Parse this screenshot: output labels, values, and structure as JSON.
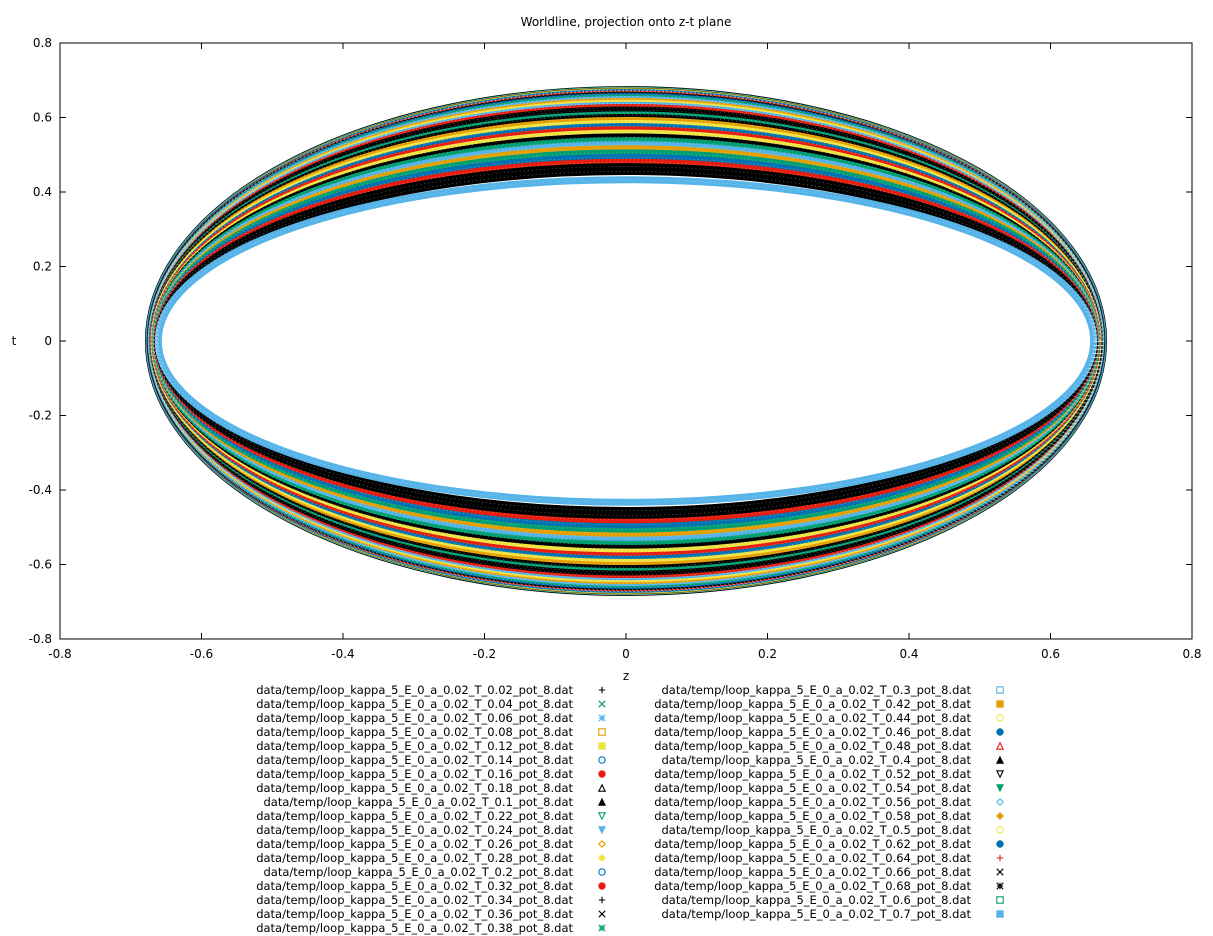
{
  "chart_data": {
    "type": "scatter",
    "title": "Worldline, projection onto z-t plane",
    "xlabel": "z",
    "ylabel": "t",
    "xlim": [
      -0.8,
      0.8
    ],
    "ylim": [
      -0.8,
      0.8
    ],
    "xticks": [
      "-0.8",
      "-0.6",
      "-0.4",
      "-0.2",
      "0",
      "0.2",
      "0.4",
      "0.6",
      "0.8"
    ],
    "yticks": [
      "0.8",
      "0.6",
      "0.4",
      "0.2",
      "0",
      "-0.2",
      "-0.4",
      "-0.6",
      "-0.8"
    ],
    "grid": false,
    "legend_position": "below",
    "series": [
      {
        "name": "data/temp/loop_kappa_5_E_0_a_0.02_T_0.02_pot_8.dat",
        "color": "#000000",
        "marker": "plus",
        "rz": 0.675,
        "rt": 0.675
      },
      {
        "name": "data/temp/loop_kappa_5_E_0_a_0.02_T_0.04_pot_8.dat",
        "color": "#009e73",
        "marker": "cross",
        "rz": 0.674,
        "rt": 0.673
      },
      {
        "name": "data/temp/loop_kappa_5_E_0_a_0.02_T_0.06_pot_8.dat",
        "color": "#56b4e9",
        "marker": "star",
        "rz": 0.674,
        "rt": 0.672
      },
      {
        "name": "data/temp/loop_kappa_5_E_0_a_0.02_T_0.08_pot_8.dat",
        "color": "#e69f00",
        "marker": "square-open",
        "rz": 0.673,
        "rt": 0.671
      },
      {
        "name": "data/temp/loop_kappa_5_E_0_a_0.02_T_0.12_pot_8.dat",
        "color": "#f0e442",
        "marker": "square-filled",
        "rz": 0.673,
        "rt": 0.669
      },
      {
        "name": "data/temp/loop_kappa_5_E_0_a_0.02_T_0.14_pot_8.dat",
        "color": "#0072b2",
        "marker": "circle-open",
        "rz": 0.673,
        "rt": 0.667
      },
      {
        "name": "data/temp/loop_kappa_5_E_0_a_0.02_T_0.16_pot_8.dat",
        "color": "#e51e10",
        "marker": "circle-filled",
        "rz": 0.672,
        "rt": 0.663
      },
      {
        "name": "data/temp/loop_kappa_5_E_0_a_0.02_T_0.18_pot_8.dat",
        "color": "#000000",
        "marker": "triangle-open",
        "rz": 0.672,
        "rt": 0.66
      },
      {
        "name": "data/temp/loop_kappa_5_E_0_a_0.02_T_0.1_pot_8.dat",
        "color": "#000000",
        "marker": "triangle-filled",
        "rz": 0.673,
        "rt": 0.67
      },
      {
        "name": "data/temp/loop_kappa_5_E_0_a_0.02_T_0.22_pot_8.dat",
        "color": "#009e73",
        "marker": "invtriangle-open",
        "rz": 0.671,
        "rt": 0.652
      },
      {
        "name": "data/temp/loop_kappa_5_E_0_a_0.02_T_0.24_pot_8.dat",
        "color": "#56b4e9",
        "marker": "invtriangle-filled",
        "rz": 0.671,
        "rt": 0.648
      },
      {
        "name": "data/temp/loop_kappa_5_E_0_a_0.02_T_0.26_pot_8.dat",
        "color": "#e69f00",
        "marker": "diamond-open",
        "rz": 0.67,
        "rt": 0.643
      },
      {
        "name": "data/temp/loop_kappa_5_E_0_a_0.02_T_0.28_pot_8.dat",
        "color": "#f0e442",
        "marker": "diamond-filled",
        "rz": 0.67,
        "rt": 0.638
      },
      {
        "name": "data/temp/loop_kappa_5_E_0_a_0.02_T_0.2_pot_8.dat",
        "color": "#0072b2",
        "marker": "circle-open",
        "rz": 0.671,
        "rt": 0.656
      },
      {
        "name": "data/temp/loop_kappa_5_E_0_a_0.02_T_0.32_pot_8.dat",
        "color": "#e51e10",
        "marker": "circle-filled",
        "rz": 0.669,
        "rt": 0.627
      },
      {
        "name": "data/temp/loop_kappa_5_E_0_a_0.02_T_0.34_pot_8.dat",
        "color": "#000000",
        "marker": "plus",
        "rz": 0.669,
        "rt": 0.62
      },
      {
        "name": "data/temp/loop_kappa_5_E_0_a_0.02_T_0.36_pot_8.dat",
        "color": "#000000",
        "marker": "cross",
        "rz": 0.668,
        "rt": 0.614
      },
      {
        "name": "data/temp/loop_kappa_5_E_0_a_0.02_T_0.38_pot_8.dat",
        "color": "#009e73",
        "marker": "star",
        "rz": 0.668,
        "rt": 0.607
      },
      {
        "name": "data/temp/loop_kappa_5_E_0_a_0.02_T_0.3_pot_8.dat",
        "color": "#56b4e9",
        "marker": "square-open",
        "rz": 0.67,
        "rt": 0.633
      },
      {
        "name": "data/temp/loop_kappa_5_E_0_a_0.02_T_0.42_pot_8.dat",
        "color": "#e69f00",
        "marker": "square-filled",
        "rz": 0.667,
        "rt": 0.592
      },
      {
        "name": "data/temp/loop_kappa_5_E_0_a_0.02_T_0.44_pot_8.dat",
        "color": "#f0e442",
        "marker": "circle-open",
        "rz": 0.667,
        "rt": 0.584
      },
      {
        "name": "data/temp/loop_kappa_5_E_0_a_0.02_T_0.46_pot_8.dat",
        "color": "#0072b2",
        "marker": "circle-filled",
        "rz": 0.666,
        "rt": 0.576
      },
      {
        "name": "data/temp/loop_kappa_5_E_0_a_0.02_T_0.48_pot_8.dat",
        "color": "#e51e10",
        "marker": "triangle-open",
        "rz": 0.666,
        "rt": 0.567
      },
      {
        "name": "data/temp/loop_kappa_5_E_0_a_0.02_T_0.4_pot_8.dat",
        "color": "#000000",
        "marker": "triangle-filled",
        "rz": 0.668,
        "rt": 0.6
      },
      {
        "name": "data/temp/loop_kappa_5_E_0_a_0.02_T_0.52_pot_8.dat",
        "color": "#000000",
        "marker": "invtriangle-open",
        "rz": 0.665,
        "rt": 0.548
      },
      {
        "name": "data/temp/loop_kappa_5_E_0_a_0.02_T_0.54_pot_8.dat",
        "color": "#009e73",
        "marker": "invtriangle-filled",
        "rz": 0.665,
        "rt": 0.538
      },
      {
        "name": "data/temp/loop_kappa_5_E_0_a_0.02_T_0.56_pot_8.dat",
        "color": "#56b4e9",
        "marker": "diamond-open",
        "rz": 0.664,
        "rt": 0.527
      },
      {
        "name": "data/temp/loop_kappa_5_E_0_a_0.02_T_0.58_pot_8.dat",
        "color": "#e69f00",
        "marker": "diamond-filled",
        "rz": 0.664,
        "rt": 0.516
      },
      {
        "name": "data/temp/loop_kappa_5_E_0_a_0.02_T_0.5_pot_8.dat",
        "color": "#f0e442",
        "marker": "circle-open",
        "rz": 0.665,
        "rt": 0.558
      },
      {
        "name": "data/temp/loop_kappa_5_E_0_a_0.02_T_0.62_pot_8.dat",
        "color": "#0072b2",
        "marker": "circle-filled",
        "rz": 0.663,
        "rt": 0.493
      },
      {
        "name": "data/temp/loop_kappa_5_E_0_a_0.02_T_0.64_pot_8.dat",
        "color": "#e51e10",
        "marker": "plus",
        "rz": 0.663,
        "rt": 0.48
      },
      {
        "name": "data/temp/loop_kappa_5_E_0_a_0.02_T_0.66_pot_8.dat",
        "color": "#000000",
        "marker": "cross",
        "rz": 0.662,
        "rt": 0.468
      },
      {
        "name": "data/temp/loop_kappa_5_E_0_a_0.02_T_0.68_pot_8.dat",
        "color": "#000000",
        "marker": "star",
        "rz": 0.662,
        "rt": 0.455
      },
      {
        "name": "data/temp/loop_kappa_5_E_0_a_0.02_T_0.6_pot_8.dat",
        "color": "#009e73",
        "marker": "square-open",
        "rz": 0.664,
        "rt": 0.505
      },
      {
        "name": "data/temp/loop_kappa_5_E_0_a_0.02_T_0.7_pot_8.dat",
        "color": "#56b4e9",
        "marker": "square-filled",
        "rz": 0.661,
        "rt": 0.433
      }
    ]
  }
}
